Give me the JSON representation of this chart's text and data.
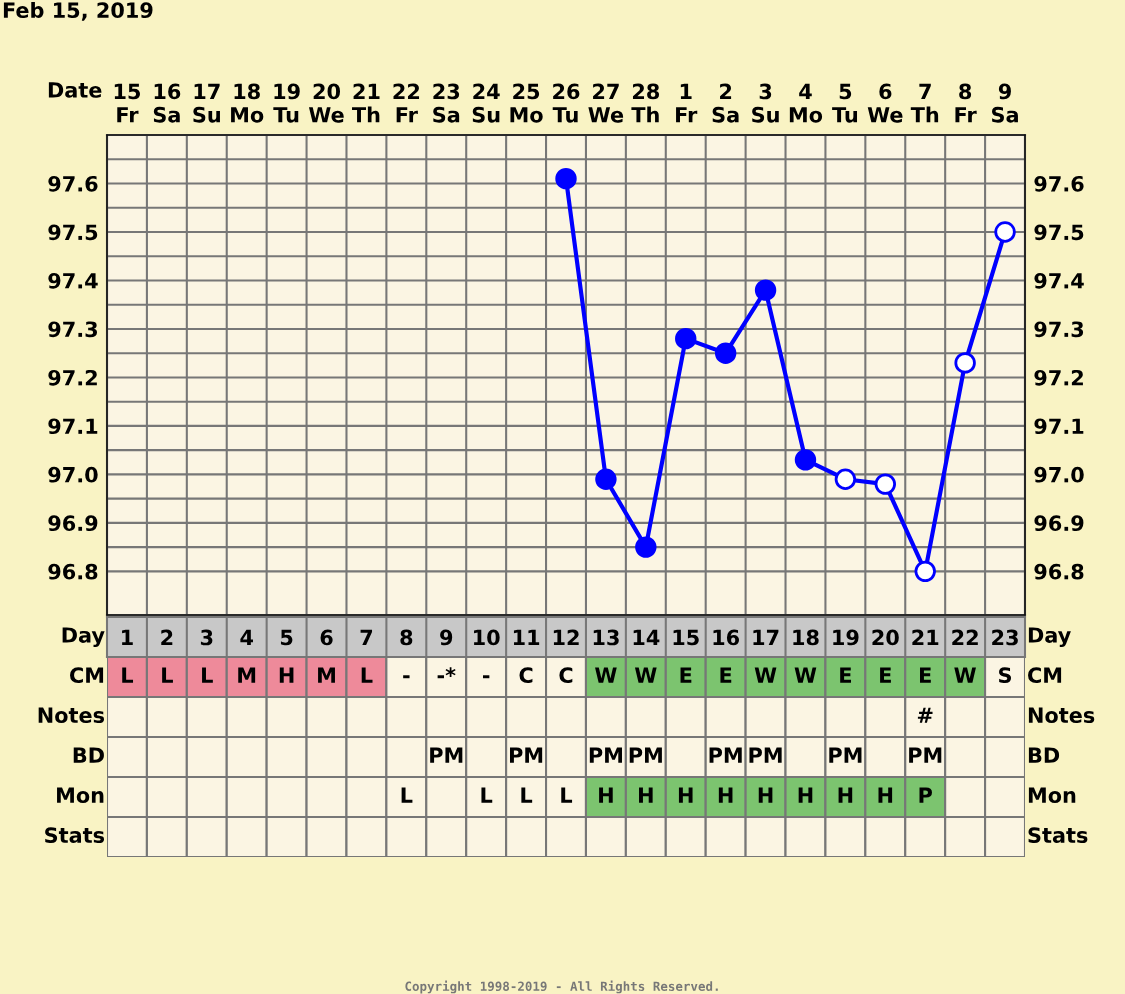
{
  "chart_data": [
    {
      "type": "line",
      "title": "Feb 15, 2019",
      "xlabel": "Date",
      "categories": [
        "15\nFr",
        "16\nSa",
        "17\nSu",
        "18\nMo",
        "19\nTu",
        "20\nWe",
        "21\nTh",
        "22\nFr",
        "23\nSa",
        "24\nSu",
        "25\nMo",
        "26\nTu",
        "27\nWe",
        "28\nTh",
        "1\nFr",
        "2\nSa",
        "3\nSu",
        "4\nMo",
        "5\nTu",
        "6\nWe",
        "7\nTh",
        "8\nFr",
        "9\nSa"
      ],
      "series": [
        {
          "color": "#0000ff",
          "values": [
            null,
            null,
            null,
            null,
            null,
            null,
            null,
            null,
            null,
            null,
            null,
            97.61,
            96.99,
            96.85,
            97.28,
            97.25,
            97.38,
            97.03,
            96.99,
            96.98,
            96.8,
            97.23,
            97.5
          ],
          "colors": [
            null,
            null,
            null,
            null,
            null,
            null,
            null,
            null,
            null,
            null,
            null,
            "#0000ff",
            "#0000ff",
            "#0000ff",
            "#0000ff",
            "#0000ff",
            "#0000ff",
            "#0000ff",
            "#ffffff",
            "#ffffff",
            "#ffffff",
            "#ffffff",
            "#ffffff"
          ]
        }
      ],
      "ylim": [
        96.71,
        97.7
      ],
      "yticks": [
        96.8,
        {
          "value": 96.85,
          "label": null
        },
        96.9,
        {
          "value": 96.95,
          "label": null
        },
        {
          "value": 97.0,
          "label": "97.0"
        },
        {
          "value": 97.05,
          "label": null
        },
        97.1,
        {
          "value": 97.15,
          "label": null
        },
        97.2,
        {
          "value": 97.25,
          "label": null
        },
        97.3,
        {
          "value": 97.35,
          "label": null
        },
        97.4,
        {
          "value": 97.45,
          "label": null
        },
        97.5,
        {
          "value": 97.55,
          "label": null
        },
        97.6,
        {
          "value": 97.65,
          "label": null
        }
      ],
      "y2lim": [
        96.71,
        97.7
      ],
      "y2ticks": [
        96.8,
        {
          "value": 96.85,
          "label": null
        },
        96.9,
        {
          "value": 96.95,
          "label": null
        },
        {
          "value": 97.0,
          "label": "97.0"
        },
        {
          "value": 97.05,
          "label": null
        },
        97.1,
        {
          "value": 97.15,
          "label": null
        },
        97.2,
        {
          "value": 97.25,
          "label": null
        },
        97.3,
        {
          "value": 97.35,
          "label": null
        },
        97.4,
        {
          "value": 97.45,
          "label": null
        },
        97.5,
        {
          "value": 97.55,
          "label": null
        },
        97.6,
        {
          "value": 97.65,
          "label": null
        }
      ],
      "grid": true,
      "marker": "circle",
      "line_style": "solid"
    },
    {
      "type": "heatmap",
      "xlabel": "Day",
      "x2label": "Day",
      "cells": [
        [
          null,
          null,
          null,
          null,
          null,
          null,
          null,
          null,
          null,
          null,
          null,
          null,
          null,
          null,
          null,
          null,
          null,
          null,
          null,
          null,
          null,
          null,
          null
        ],
        [
          null,
          null,
          null,
          null,
          null,
          null,
          null,
          null,
          null,
          null,
          null,
          null,
          null,
          null,
          null,
          null,
          null,
          null,
          null,
          null,
          null,
          null,
          null
        ],
        [
          null,
          null,
          null,
          null,
          null,
          null,
          null,
          null,
          null,
          null,
          null,
          null,
          null,
          null,
          null,
          null,
          null,
          null,
          null,
          null,
          null,
          null,
          null
        ],
        [
          null,
          null,
          null,
          null,
          null,
          null,
          null,
          null,
          null,
          null,
          null,
          null,
          null,
          null,
          null,
          null,
          null,
          null,
          null,
          null,
          null,
          null,
          null
        ],
        [
          null,
          null,
          null,
          null,
          null,
          null,
          null,
          null,
          null,
          null,
          null,
          null,
          null,
          null,
          null,
          null,
          null,
          null,
          null,
          null,
          null,
          null,
          null
        ]
      ],
      "categories": [
        "1",
        "2",
        "3",
        "4",
        "5",
        "6",
        "7",
        "8",
        "9",
        "10",
        "11",
        "12",
        "13",
        "14",
        "15",
        "16",
        "17",
        "18",
        "19",
        "20",
        "21",
        "22",
        "23"
      ],
      "y_categories": [
        "CM",
        "Notes",
        "BD",
        "Mon",
        "Stats"
      ],
      "y2_categories": [
        "CM",
        "Notes",
        "BD",
        "Mon",
        "Stats"
      ],
      "cell_labels": [
        [
          "L",
          "L",
          "L",
          "M",
          "H",
          "M",
          "L",
          "-",
          "-*",
          "-",
          "C",
          "C",
          "W",
          "W",
          "E",
          "E",
          "W",
          "W",
          "E",
          "E",
          "E",
          "W",
          "S"
        ],
        [
          null,
          null,
          null,
          null,
          null,
          null,
          null,
          null,
          null,
          null,
          null,
          null,
          null,
          null,
          null,
          null,
          null,
          null,
          null,
          null,
          "#",
          null,
          null
        ],
        [
          null,
          null,
          null,
          null,
          null,
          null,
          null,
          null,
          "PM",
          null,
          "PM",
          null,
          "PM",
          "PM",
          null,
          "PM",
          "PM",
          null,
          "PM",
          null,
          "PM",
          null,
          null
        ],
        [
          null,
          null,
          null,
          null,
          null,
          null,
          null,
          "L",
          null,
          "L",
          "L",
          "L",
          "H",
          "H",
          "H",
          "H",
          "H",
          "H",
          "H",
          "H",
          "P",
          null,
          null
        ],
        [
          null,
          null,
          null,
          null,
          null,
          null,
          null,
          null,
          null,
          null,
          null,
          null,
          null,
          null,
          null,
          null,
          null,
          null,
          null,
          null,
          null,
          null,
          null
        ]
      ],
      "colors": [
        [
          "#ee8a9a",
          "#ee8a9a",
          "#ee8a9a",
          "#ee8a9a",
          "#ee8a9a",
          "#ee8a9a",
          "#ee8a9a",
          "#fbf5e3",
          "#fbf5e3",
          "#fbf5e3",
          "#fbf5e3",
          "#fbf5e3",
          "#7cc46f",
          "#7cc46f",
          "#7cc46f",
          "#7cc46f",
          "#7cc46f",
          "#7cc46f",
          "#7cc46f",
          "#7cc46f",
          "#7cc46f",
          "#7cc46f",
          "#fbf5e3"
        ],
        [
          "#fbf5e3",
          "#fbf5e3",
          "#fbf5e3",
          "#fbf5e3",
          "#fbf5e3",
          "#fbf5e3",
          "#fbf5e3",
          "#fbf5e3",
          "#fbf5e3",
          "#fbf5e3",
          "#fbf5e3",
          "#fbf5e3",
          "#fbf5e3",
          "#fbf5e3",
          "#fbf5e3",
          "#fbf5e3",
          "#fbf5e3",
          "#fbf5e3",
          "#fbf5e3",
          "#fbf5e3",
          "#fbf5e3",
          "#fbf5e3",
          "#fbf5e3"
        ],
        [
          "#fbf5e3",
          "#fbf5e3",
          "#fbf5e3",
          "#fbf5e3",
          "#fbf5e3",
          "#fbf5e3",
          "#fbf5e3",
          "#fbf5e3",
          "#fbf5e3",
          "#fbf5e3",
          "#fbf5e3",
          "#fbf5e3",
          "#fbf5e3",
          "#fbf5e3",
          "#fbf5e3",
          "#fbf5e3",
          "#fbf5e3",
          "#fbf5e3",
          "#fbf5e3",
          "#fbf5e3",
          "#fbf5e3",
          "#fbf5e3",
          "#fbf5e3"
        ],
        [
          "#fbf5e3",
          "#fbf5e3",
          "#fbf5e3",
          "#fbf5e3",
          "#fbf5e3",
          "#fbf5e3",
          "#fbf5e3",
          "#fbf5e3",
          "#fbf5e3",
          "#fbf5e3",
          "#fbf5e3",
          "#fbf5e3",
          "#7cc46f",
          "#7cc46f",
          "#7cc46f",
          "#7cc46f",
          "#7cc46f",
          "#7cc46f",
          "#7cc46f",
          "#7cc46f",
          "#7cc46f",
          "#fbf5e3",
          "#fbf5e3"
        ],
        [
          "#fbf5e3",
          "#fbf5e3",
          "#fbf5e3",
          "#fbf5e3",
          "#fbf5e3",
          "#fbf5e3",
          "#fbf5e3",
          "#fbf5e3",
          "#fbf5e3",
          "#fbf5e3",
          "#fbf5e3",
          "#fbf5e3",
          "#fbf5e3",
          "#fbf5e3",
          "#fbf5e3",
          "#fbf5e3",
          "#fbf5e3",
          "#fbf5e3",
          "#fbf5e3",
          "#fbf5e3",
          "#fbf5e3",
          "#fbf5e3",
          "#fbf5e3"
        ]
      ],
      "annotations": [
        "Copyright 1998-2019 - All Rights Reserved."
      ]
    }
  ]
}
